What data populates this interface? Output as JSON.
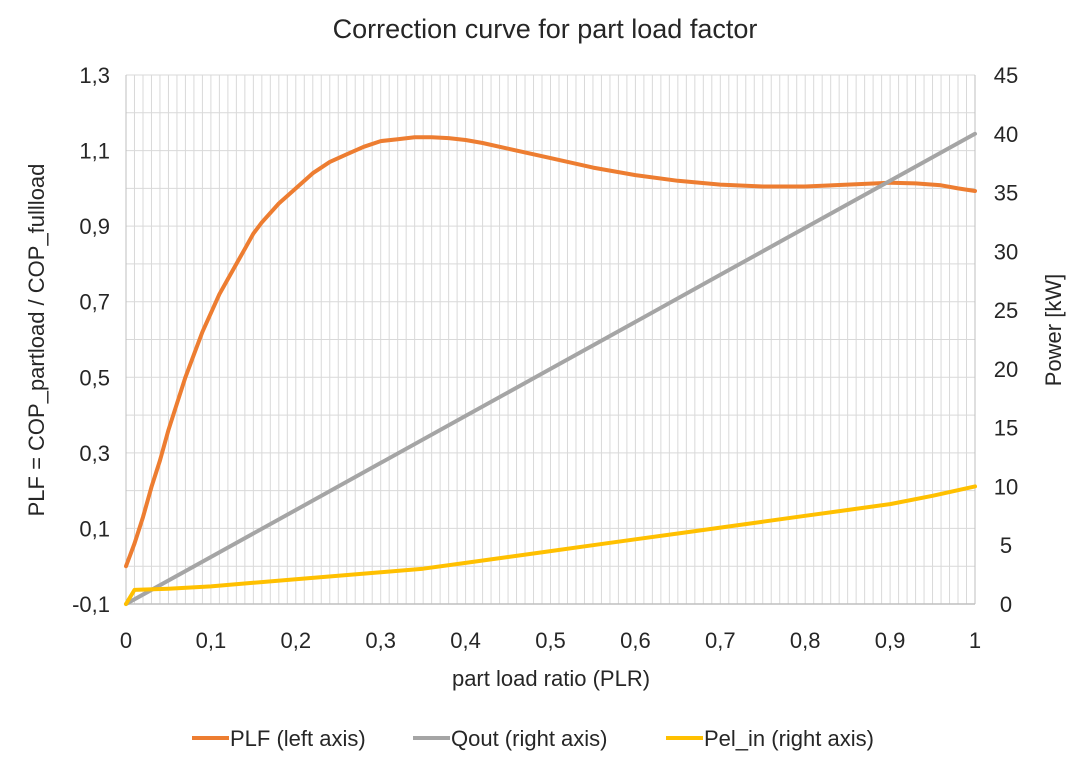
{
  "chart_data": {
    "type": "line",
    "title": "Correction curve for part load factor",
    "xlabel": "part load ratio (PLR)",
    "ylabel_left": "PLF = COP_partload / COP_fullload",
    "ylabel_right": "Power [kW]",
    "xlim": [
      0,
      1
    ],
    "ylim_left": [
      -0.1,
      1.3
    ],
    "ylim_right": [
      0,
      45
    ],
    "x_ticks": [
      "0",
      "0,1",
      "0,2",
      "0,3",
      "0,4",
      "0,5",
      "0,6",
      "0,7",
      "0,8",
      "0,9",
      "1"
    ],
    "y_left_ticks": [
      "-0,1",
      "0,1",
      "0,3",
      "0,5",
      "0,7",
      "0,9",
      "1,1",
      "1,3"
    ],
    "y_right_ticks": [
      "0",
      "5",
      "10",
      "15",
      "20",
      "25",
      "30",
      "35",
      "40",
      "45"
    ],
    "grid": true,
    "legend_position": "bottom",
    "series": [
      {
        "name": "PLF (left axis)",
        "axis": "left",
        "color": "#ED7D31",
        "x": [
          0,
          0.01,
          0.02,
          0.03,
          0.04,
          0.05,
          0.06,
          0.07,
          0.08,
          0.09,
          0.1,
          0.11,
          0.12,
          0.13,
          0.14,
          0.15,
          0.16,
          0.18,
          0.2,
          0.22,
          0.24,
          0.26,
          0.28,
          0.3,
          0.32,
          0.34,
          0.36,
          0.38,
          0.4,
          0.42,
          0.45,
          0.5,
          0.55,
          0.6,
          0.65,
          0.7,
          0.75,
          0.8,
          0.85,
          0.9,
          0.93,
          0.96,
          0.98,
          1.0
        ],
        "y": [
          0.0,
          0.06,
          0.13,
          0.21,
          0.28,
          0.36,
          0.43,
          0.5,
          0.56,
          0.62,
          0.67,
          0.72,
          0.76,
          0.8,
          0.84,
          0.88,
          0.91,
          0.96,
          1.0,
          1.04,
          1.07,
          1.09,
          1.11,
          1.125,
          1.13,
          1.135,
          1.135,
          1.133,
          1.128,
          1.12,
          1.105,
          1.08,
          1.055,
          1.035,
          1.02,
          1.01,
          1.005,
          1.005,
          1.01,
          1.015,
          1.013,
          1.008,
          1.0,
          0.993
        ]
      },
      {
        "name": "Qout (right axis)",
        "axis": "right",
        "color": "#A5A5A5",
        "x": [
          0,
          0.1,
          0.2,
          0.3,
          0.4,
          0.5,
          0.6,
          0.7,
          0.8,
          0.9,
          1.0
        ],
        "y": [
          0,
          4,
          8,
          12,
          16,
          20,
          24,
          28,
          32,
          36,
          40
        ]
      },
      {
        "name": "Pel_in (right axis)",
        "axis": "right",
        "color": "#FFC000",
        "x": [
          0,
          0.01,
          0.05,
          0.1,
          0.15,
          0.2,
          0.25,
          0.3,
          0.35,
          0.4,
          0.45,
          0.5,
          0.55,
          0.6,
          0.65,
          0.7,
          0.75,
          0.8,
          0.85,
          0.9,
          0.95,
          1.0
        ],
        "y": [
          0,
          1.2,
          1.3,
          1.5,
          1.8,
          2.1,
          2.4,
          2.7,
          3.0,
          3.5,
          4.0,
          4.5,
          5.0,
          5.5,
          6.0,
          6.5,
          7.0,
          7.5,
          8.0,
          8.5,
          9.2,
          10.0
        ]
      }
    ]
  }
}
